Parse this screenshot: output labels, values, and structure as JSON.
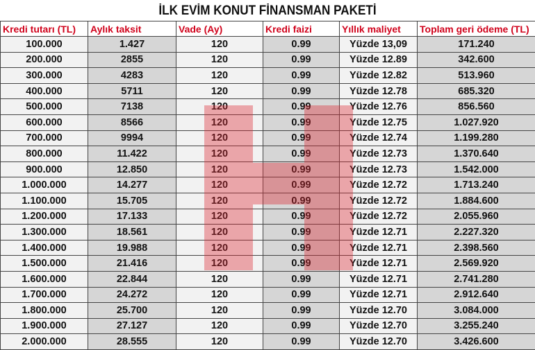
{
  "title": "İLK EVİM KONUT FİNANSMAN PAKETİ",
  "columns": [
    "Kredi tutarı (TL)",
    "Aylık taksit",
    "Vade (Ay)",
    "Kredi faizi",
    "Yıllık maliyet",
    "Toplam geri ödeme (TL)"
  ],
  "rows": [
    [
      "100.000",
      "1.427",
      "120",
      "0.99",
      "Yüzde 13,09",
      "171.240"
    ],
    [
      "200.000",
      "2855",
      "120",
      "0.99",
      "Yüzde 12.89",
      "342.600"
    ],
    [
      "300.000",
      "4283",
      "120",
      "0.99",
      "Yüzde 12.82",
      "513.960"
    ],
    [
      "400.000",
      "5711",
      "120",
      "0.99",
      "Yüzde 12.78",
      "685.320"
    ],
    [
      "500.000",
      "7138",
      "120",
      "0.99",
      "Yüzde 12.76",
      "856.560"
    ],
    [
      "600.000",
      "8566",
      "120",
      "0.99",
      "Yüzde 12.75",
      "1.027.920"
    ],
    [
      "700.000",
      "9994",
      "120",
      "0.99",
      "Yüzde 12.74",
      "1.199.280"
    ],
    [
      "800.000",
      "11.422",
      "120",
      "0.99",
      "Yüzde 12.73",
      "1.370.640"
    ],
    [
      "900.000",
      "12.850",
      "120",
      "0.99",
      "Yüzde 12.73",
      "1.542.000"
    ],
    [
      "1.000.000",
      "14.277",
      "120",
      "0.99",
      "Yüzde 12.72",
      "1.713.240"
    ],
    [
      "1.100.000",
      "15.705",
      "120",
      "0.99",
      "Yüzde 12.72",
      "1.884.600"
    ],
    [
      "1.200.000",
      "17.133",
      "120",
      "0.99",
      "Yüzde 12.72",
      "2.055.960"
    ],
    [
      "1.300.000",
      "18.561",
      "120",
      "0.99",
      "Yüzde 12.71",
      "2.227.320"
    ],
    [
      "1.400.000",
      "19.988",
      "120",
      "0.99",
      "Yüzde 12.71",
      "2.398.560"
    ],
    [
      "1.500.000",
      "21.416",
      "120",
      "0.99",
      "Yüzde 12.71",
      "2.569.920"
    ],
    [
      "1.600.000",
      "22.844",
      "120",
      "0.99",
      "Yüzde 12.71",
      "2.741.280"
    ],
    [
      "1.700.000",
      "24.272",
      "120",
      "0.99",
      "Yüzde 12.71",
      "2.912.640"
    ],
    [
      "1.800.000",
      "25.700",
      "120",
      "0.99",
      "Yüzde 12.70",
      "3.084.000"
    ],
    [
      "1.900.000",
      "27.127",
      "120",
      "0.99",
      "Yüzde 12.70",
      "3.255.240"
    ],
    [
      "2.000.000",
      "28.555",
      "120",
      "0.99",
      "Yüzde 12.70",
      "3.426.600"
    ]
  ],
  "colors": {
    "header_text": "#d0021b",
    "watermark": "#dc2832"
  },
  "watermark_icon": "letter-h-logo"
}
